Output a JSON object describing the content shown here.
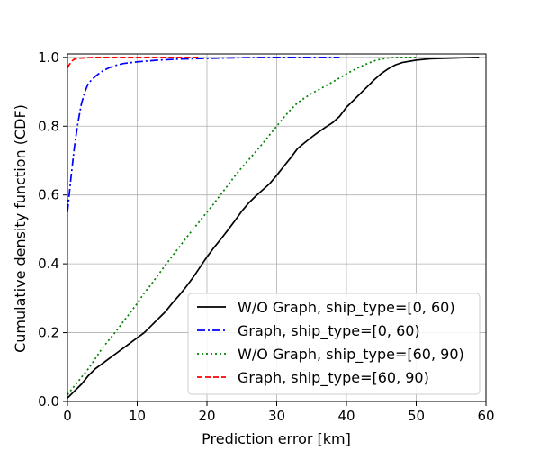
{
  "chart_data": {
    "type": "line",
    "xlabel": "Prediction error [km]",
    "ylabel": "Cumulative density function (CDF)",
    "xlim": [
      0,
      60
    ],
    "ylim": [
      0,
      1.01
    ],
    "xticks": [
      0,
      10,
      20,
      30,
      40,
      50,
      60
    ],
    "yticks": [
      0.0,
      0.2,
      0.4,
      0.6,
      0.8,
      1.0
    ],
    "xtick_labels": [
      "0",
      "10",
      "20",
      "30",
      "40",
      "50",
      "60"
    ],
    "ytick_labels": [
      "0.0",
      "0.2",
      "0.4",
      "0.6",
      "0.8",
      "1.0"
    ],
    "grid": true,
    "legend_position": "lower-right",
    "series": [
      {
        "name": "W/O Graph, ship_type=[0, 60)",
        "color": "#000000",
        "dash": "solid",
        "points": [
          [
            0,
            0.01
          ],
          [
            1,
            0.03
          ],
          [
            2,
            0.05
          ],
          [
            3,
            0.075
          ],
          [
            4,
            0.095
          ],
          [
            5,
            0.11
          ],
          [
            6,
            0.125
          ],
          [
            7,
            0.14
          ],
          [
            8,
            0.155
          ],
          [
            9,
            0.17
          ],
          [
            10,
            0.185
          ],
          [
            11,
            0.2
          ],
          [
            12,
            0.22
          ],
          [
            13,
            0.24
          ],
          [
            14,
            0.26
          ],
          [
            15,
            0.285
          ],
          [
            16,
            0.308
          ],
          [
            17,
            0.333
          ],
          [
            18,
            0.36
          ],
          [
            19,
            0.39
          ],
          [
            20,
            0.42
          ],
          [
            21,
            0.447
          ],
          [
            22,
            0.472
          ],
          [
            23,
            0.498
          ],
          [
            24,
            0.525
          ],
          [
            25,
            0.553
          ],
          [
            26,
            0.577
          ],
          [
            27,
            0.597
          ],
          [
            28,
            0.615
          ],
          [
            29,
            0.633
          ],
          [
            30,
            0.657
          ],
          [
            31,
            0.683
          ],
          [
            32,
            0.708
          ],
          [
            33,
            0.735
          ],
          [
            34,
            0.752
          ],
          [
            35,
            0.768
          ],
          [
            36,
            0.783
          ],
          [
            37,
            0.797
          ],
          [
            38,
            0.81
          ],
          [
            39,
            0.828
          ],
          [
            40,
            0.855
          ],
          [
            41,
            0.875
          ],
          [
            42,
            0.895
          ],
          [
            43,
            0.915
          ],
          [
            44,
            0.935
          ],
          [
            45,
            0.953
          ],
          [
            46,
            0.967
          ],
          [
            47,
            0.978
          ],
          [
            48,
            0.985
          ],
          [
            50,
            0.992
          ],
          [
            52,
            0.996
          ],
          [
            55,
            0.998
          ],
          [
            59,
            1.0
          ]
        ]
      },
      {
        "name": "Graph, ship_type=[0, 60)",
        "color": "#0000ff",
        "dash": "dashdot",
        "points": [
          [
            0,
            0.55
          ],
          [
            0.5,
            0.65
          ],
          [
            1,
            0.74
          ],
          [
            1.5,
            0.81
          ],
          [
            2,
            0.865
          ],
          [
            2.5,
            0.9
          ],
          [
            3,
            0.925
          ],
          [
            4,
            0.945
          ],
          [
            5,
            0.96
          ],
          [
            6,
            0.97
          ],
          [
            7,
            0.977
          ],
          [
            8,
            0.982
          ],
          [
            10,
            0.987
          ],
          [
            13,
            0.992
          ],
          [
            16,
            0.995
          ],
          [
            20,
            0.997
          ],
          [
            25,
            0.999
          ],
          [
            30,
            1.0
          ],
          [
            39,
            1.0
          ]
        ]
      },
      {
        "name": "W/O Graph, ship_type=[60, 90)",
        "color": "#008000",
        "dash": "dotted",
        "points": [
          [
            0,
            0.02
          ],
          [
            1,
            0.045
          ],
          [
            2,
            0.07
          ],
          [
            3,
            0.095
          ],
          [
            4,
            0.125
          ],
          [
            5,
            0.155
          ],
          [
            6,
            0.18
          ],
          [
            7,
            0.205
          ],
          [
            8,
            0.232
          ],
          [
            9,
            0.258
          ],
          [
            10,
            0.285
          ],
          [
            11,
            0.315
          ],
          [
            12,
            0.34
          ],
          [
            13,
            0.368
          ],
          [
            14,
            0.395
          ],
          [
            15,
            0.422
          ],
          [
            16,
            0.448
          ],
          [
            17,
            0.475
          ],
          [
            18,
            0.5
          ],
          [
            19,
            0.525
          ],
          [
            20,
            0.55
          ],
          [
            21,
            0.575
          ],
          [
            22,
            0.602
          ],
          [
            23,
            0.628
          ],
          [
            24,
            0.655
          ],
          [
            25,
            0.68
          ],
          [
            26,
            0.703
          ],
          [
            27,
            0.726
          ],
          [
            28,
            0.75
          ],
          [
            29,
            0.775
          ],
          [
            30,
            0.8
          ],
          [
            31,
            0.825
          ],
          [
            32,
            0.848
          ],
          [
            33,
            0.868
          ],
          [
            34,
            0.882
          ],
          [
            35,
            0.895
          ],
          [
            36,
            0.906
          ],
          [
            37,
            0.917
          ],
          [
            38,
            0.928
          ],
          [
            39,
            0.94
          ],
          [
            40,
            0.952
          ],
          [
            41,
            0.963
          ],
          [
            42,
            0.973
          ],
          [
            43,
            0.982
          ],
          [
            44,
            0.99
          ],
          [
            45,
            0.995
          ],
          [
            46,
            0.998
          ],
          [
            47,
            1.0
          ],
          [
            50,
            1.0
          ]
        ]
      },
      {
        "name": "Graph, ship_type=[60, 90)",
        "color": "#ff0000",
        "dash": "dashed",
        "points": [
          [
            0,
            0.97
          ],
          [
            0.3,
            0.98
          ],
          [
            0.7,
            0.99
          ],
          [
            1,
            0.995
          ],
          [
            2,
            0.998
          ],
          [
            4,
            1.0
          ],
          [
            19,
            1.0
          ]
        ]
      }
    ]
  }
}
